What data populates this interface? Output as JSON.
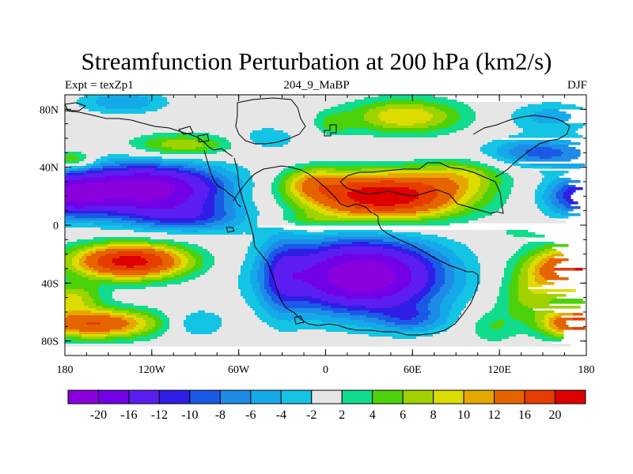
{
  "chart_data": {
    "type": "heatmap",
    "title": "Streamfunction Perturbation at 200 hPa (km2/s)",
    "subtitle_left": "Expt = texZp1",
    "subtitle_center": "204_9_MaBP",
    "subtitle_right": "DJF",
    "xlabel": "",
    "ylabel": "",
    "xlim": [
      -180,
      180
    ],
    "ylim": [
      -90,
      90
    ],
    "x_ticks": [
      {
        "value": -180,
        "label": "180"
      },
      {
        "value": -120,
        "label": "120W"
      },
      {
        "value": -60,
        "label": "60W"
      },
      {
        "value": 0,
        "label": "0"
      },
      {
        "value": 60,
        "label": "60E"
      },
      {
        "value": 120,
        "label": "120E"
      },
      {
        "value": 180,
        "label": "180"
      }
    ],
    "y_ticks": [
      {
        "value": 80,
        "label": "80N"
      },
      {
        "value": 40,
        "label": "40N"
      },
      {
        "value": 0,
        "label": "0"
      },
      {
        "value": -40,
        "label": "40S"
      },
      {
        "value": -80,
        "label": "80S"
      }
    ],
    "colorbar": {
      "levels": [
        -20,
        -16,
        -12,
        -10,
        -8,
        -6,
        -4,
        -2,
        2,
        4,
        6,
        8,
        10,
        12,
        16,
        20
      ],
      "labels": [
        "-20",
        "-16",
        "-12",
        "-10",
        "-8",
        "-6",
        "-4",
        "-2",
        "2",
        "4",
        "6",
        "8",
        "10",
        "12",
        "16",
        "20"
      ],
      "colors": [
        "#8a00dc",
        "#7200e6",
        "#5c1ef0",
        "#2e1ee6",
        "#1a5ae6",
        "#1e8ce6",
        "#14aaea",
        "#14c4e4",
        "#e6e6e6",
        "#10dc8c",
        "#4cd20a",
        "#a0d200",
        "#dcdc00",
        "#e6a800",
        "#e66400",
        "#e63c00",
        "#dc0000"
      ]
    },
    "features": [
      {
        "lon": -125,
        "lat": 25,
        "sx": 55,
        "sy": 17,
        "amp": -23
      },
      {
        "lon": -95,
        "lat": 5,
        "sx": 45,
        "sy": 10,
        "amp": -8
      },
      {
        "lon": 40,
        "lat": 20,
        "sx": 55,
        "sy": 16,
        "amp": 24
      },
      {
        "lon": 95,
        "lat": 35,
        "sx": 30,
        "sy": 12,
        "amp": 6
      },
      {
        "lon": -180,
        "lat": 20,
        "sx": 28,
        "sy": 14,
        "amp": -14
      },
      {
        "lon": 180,
        "lat": 20,
        "sx": 28,
        "sy": 14,
        "amp": -14
      },
      {
        "lon": 25,
        "lat": -35,
        "sx": 55,
        "sy": 25,
        "amp": -24
      },
      {
        "lon": 60,
        "lat": -65,
        "sx": 25,
        "sy": 10,
        "amp": -6
      },
      {
        "lon": -135,
        "lat": -25,
        "sx": 40,
        "sy": 12,
        "amp": 22
      },
      {
        "lon": -160,
        "lat": -68,
        "sx": 45,
        "sy": 10,
        "amp": 16
      },
      {
        "lon": -175,
        "lat": -50,
        "sx": 20,
        "sy": 10,
        "amp": 8
      },
      {
        "lon": 175,
        "lat": -30,
        "sx": 35,
        "sy": 15,
        "amp": 20
      },
      {
        "lon": 175,
        "lat": -68,
        "sx": 25,
        "sy": 10,
        "amp": 18
      },
      {
        "lon": 140,
        "lat": -50,
        "sx": 22,
        "sy": 15,
        "amp": 6
      },
      {
        "lon": -30,
        "lat": -35,
        "sx": 15,
        "sy": 30,
        "amp": -6
      },
      {
        "lon": -100,
        "lat": 55,
        "sx": 35,
        "sy": 8,
        "amp": 8
      },
      {
        "lon": -40,
        "lat": 60,
        "sx": 20,
        "sy": 8,
        "amp": -4
      },
      {
        "lon": -140,
        "lat": 85,
        "sx": 30,
        "sy": 8,
        "amp": -6
      },
      {
        "lon": -175,
        "lat": 45,
        "sx": 15,
        "sy": 6,
        "amp": 8
      },
      {
        "lon": 55,
        "lat": 75,
        "sx": 40,
        "sy": 12,
        "amp": 10
      },
      {
        "lon": 5,
        "lat": 70,
        "sx": 12,
        "sy": 8,
        "amp": 4
      },
      {
        "lon": 150,
        "lat": 50,
        "sx": 40,
        "sy": 10,
        "amp": -9
      },
      {
        "lon": 155,
        "lat": 75,
        "sx": 30,
        "sy": 10,
        "amp": -5
      },
      {
        "lon": 30,
        "lat": 50,
        "sx": 45,
        "sy": 6,
        "amp": -2
      },
      {
        "lon": -10,
        "lat": 30,
        "sx": 20,
        "sy": 10,
        "amp": 7
      },
      {
        "lon": -15,
        "lat": 3,
        "sx": 30,
        "sy": 6,
        "amp": 4
      },
      {
        "lon": 130,
        "lat": -5,
        "sx": 25,
        "sy": 6,
        "amp": 2
      },
      {
        "lon": 115,
        "lat": -70,
        "sx": 18,
        "sy": 12,
        "amp": 4
      },
      {
        "lon": -90,
        "lat": -68,
        "sx": 20,
        "sy": 10,
        "amp": -5
      }
    ]
  }
}
